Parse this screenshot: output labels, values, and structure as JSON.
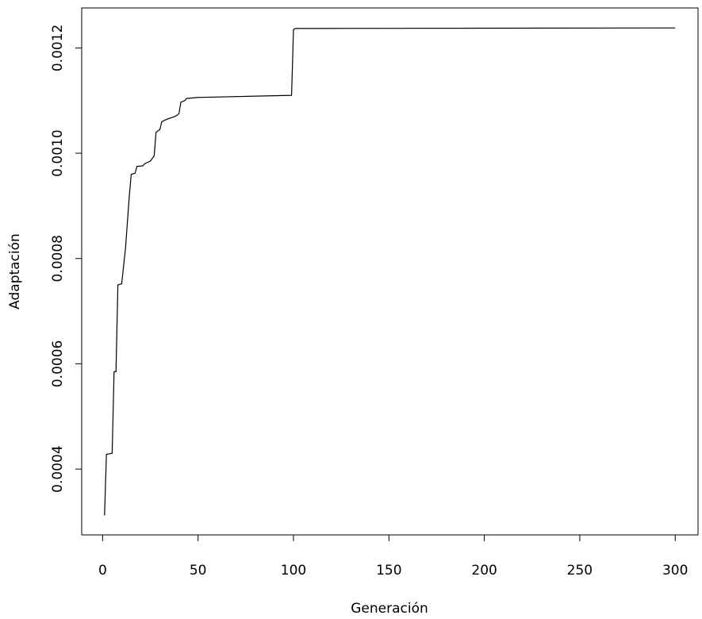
{
  "chart_data": {
    "type": "line",
    "x_label": "Generación",
    "y_label": "Adaptación",
    "x": [
      1,
      2,
      5,
      6,
      7,
      8,
      10,
      12,
      14,
      15,
      17,
      18,
      21,
      22,
      25,
      27,
      28,
      30,
      31,
      34,
      38,
      40,
      41,
      43,
      44,
      50,
      99,
      100,
      101,
      300
    ],
    "values": [
      0.000312,
      0.000428,
      0.00043,
      0.000585,
      0.000585,
      0.00075,
      0.000752,
      0.00082,
      0.00092,
      0.00096,
      0.000962,
      0.000975,
      0.000976,
      0.00098,
      0.000985,
      0.000995,
      0.00104,
      0.001045,
      0.00106,
      0.001065,
      0.00107,
      0.001075,
      0.001097,
      0.0011,
      0.001104,
      0.001106,
      0.00111,
      0.001235,
      0.001237,
      0.001238
    ],
    "color": "#000000",
    "xlim": [
      -10.96,
      311.96
    ],
    "xticks": [
      0,
      50,
      100,
      150,
      200,
      250,
      300
    ],
    "ylim": [
      0.000275,
      0.001276
    ],
    "yticks": [
      0.0004,
      0.0006,
      0.0008,
      {
        "value": 0.001,
        "label": "0.0010"
      },
      0.0012
    ]
  }
}
